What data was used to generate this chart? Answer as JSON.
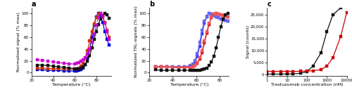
{
  "panel_a": {
    "title": "a",
    "xlabel": "Temperature (°C)",
    "ylabel": "Normalized signal (% max)",
    "xlim": [
      22,
      94
    ],
    "ylim": [
      -5,
      110
    ],
    "xticks": [
      20,
      40,
      60,
      80
    ],
    "curves": [
      {
        "color": "#0000dd",
        "linestyle": "solid",
        "x": [
          25,
          30,
          35,
          40,
          45,
          50,
          55,
          60,
          62,
          64,
          66,
          68,
          70,
          72,
          74,
          76,
          78,
          80,
          82,
          84,
          86,
          88,
          90,
          92
        ],
        "y": [
          5,
          5,
          4,
          4,
          4,
          3,
          3,
          3,
          3,
          4,
          5,
          8,
          14,
          24,
          40,
          60,
          80,
          95,
          100,
          96,
          85,
          70,
          57,
          47
        ]
      },
      {
        "color": "#cc3300",
        "linestyle": "solid",
        "x": [
          25,
          30,
          35,
          40,
          45,
          50,
          55,
          60,
          62,
          64,
          66,
          68,
          70,
          72,
          74,
          76,
          78,
          80,
          82,
          84,
          86,
          88,
          90,
          92
        ],
        "y": [
          8,
          8,
          7,
          7,
          7,
          6,
          6,
          6,
          7,
          8,
          11,
          16,
          25,
          38,
          54,
          70,
          83,
          93,
          99,
          100,
          95,
          85,
          72,
          60
        ]
      },
      {
        "color": "#111111",
        "linestyle": "solid",
        "x": [
          25,
          30,
          35,
          40,
          45,
          50,
          55,
          60,
          62,
          64,
          66,
          68,
          70,
          72,
          74,
          76,
          78,
          80,
          82,
          84,
          86,
          88,
          90,
          92
        ],
        "y": [
          13,
          13,
          12,
          11,
          10,
          9,
          8,
          7,
          7,
          7,
          8,
          10,
          14,
          20,
          29,
          42,
          56,
          70,
          82,
          91,
          97,
          100,
          98,
          92
        ]
      },
      {
        "color": "#cc00cc",
        "linestyle": "dashed",
        "x": [
          25,
          30,
          35,
          40,
          45,
          50,
          55,
          60,
          62,
          64,
          66,
          68,
          70,
          72,
          74,
          76,
          78,
          80,
          82,
          84,
          86,
          88,
          90,
          92
        ],
        "y": [
          22,
          21,
          20,
          18,
          17,
          16,
          15,
          15,
          16,
          17,
          19,
          22,
          26,
          32,
          40,
          52,
          65,
          80,
          93,
          100,
          96,
          84,
          70,
          57
        ]
      }
    ]
  },
  "panel_b": {
    "title": "b",
    "xlabel": "Temperature (°C)",
    "ylabel": "Normalized TRL-signals (% max)",
    "xlim": [
      22,
      88
    ],
    "ylim": [
      -5,
      110
    ],
    "xticks": [
      20,
      40,
      60,
      80
    ],
    "curves": [
      {
        "color": "#3333ff",
        "linestyle": "solid",
        "x": [
          25,
          30,
          35,
          40,
          45,
          50,
          55,
          57,
          59,
          61,
          63,
          65,
          67,
          69,
          71,
          73,
          75,
          77,
          79,
          81,
          83,
          85,
          87
        ],
        "y": [
          10,
          10,
          10,
          10,
          10,
          10,
          11,
          13,
          18,
          28,
          45,
          66,
          84,
          95,
          100,
          99,
          97,
          95,
          93,
          91,
          90,
          89,
          88
        ]
      },
      {
        "color": "#6666ee",
        "linestyle": "solid",
        "x": [
          25,
          30,
          35,
          40,
          45,
          50,
          55,
          57,
          59,
          61,
          63,
          65,
          67,
          69,
          71,
          73,
          75,
          77,
          79,
          81,
          83,
          85,
          87
        ],
        "y": [
          10,
          10,
          10,
          10,
          10,
          10,
          12,
          15,
          21,
          33,
          52,
          72,
          87,
          96,
          100,
          99,
          97,
          95,
          93,
          91,
          90,
          89,
          88
        ]
      },
      {
        "color": "#cc0000",
        "linestyle": "solid",
        "x": [
          25,
          30,
          35,
          40,
          45,
          50,
          55,
          57,
          59,
          61,
          63,
          65,
          67,
          69,
          71,
          73,
          75,
          77,
          79,
          81,
          83,
          85,
          87
        ],
        "y": [
          10,
          10,
          10,
          9,
          9,
          9,
          9,
          10,
          12,
          16,
          23,
          34,
          50,
          67,
          82,
          93,
          99,
          100,
          99,
          98,
          97,
          96,
          95
        ]
      },
      {
        "color": "#ee5555",
        "linestyle": "solid",
        "x": [
          25,
          30,
          35,
          40,
          45,
          50,
          55,
          57,
          59,
          61,
          63,
          65,
          67,
          69,
          71,
          73,
          75,
          77,
          79,
          81,
          83,
          85,
          87
        ],
        "y": [
          10,
          10,
          10,
          9,
          9,
          9,
          9,
          10,
          13,
          17,
          25,
          37,
          54,
          70,
          84,
          94,
          99,
          100,
          99,
          98,
          97,
          96,
          95
        ]
      },
      {
        "color": "#111111",
        "linestyle": "solid",
        "x": [
          25,
          30,
          35,
          40,
          45,
          50,
          55,
          57,
          59,
          61,
          63,
          65,
          67,
          69,
          71,
          73,
          75,
          77,
          79,
          81,
          83,
          85,
          87
        ],
        "y": [
          5,
          4,
          4,
          4,
          4,
          4,
          4,
          4,
          4,
          4,
          4,
          5,
          6,
          8,
          12,
          18,
          28,
          42,
          60,
          78,
          91,
          98,
          100
        ]
      }
    ]
  },
  "panel_c": {
    "title": "c",
    "xlabel": "Trastuzumab concentration (nM)",
    "ylabel": "Signal (counts)",
    "xlim_log": [
      1,
      10000
    ],
    "ylim": [
      -500,
      28000
    ],
    "yticks": [
      0,
      5000,
      10000,
      15000,
      20000,
      25000
    ],
    "xticks_log": [
      1,
      10,
      100,
      1000,
      10000
    ],
    "xtick_labels": [
      "1",
      "10",
      "100",
      "1000",
      "10000"
    ],
    "curves": [
      {
        "color": "#111111",
        "x": [
          1,
          2,
          5,
          10,
          20,
          50,
          100,
          200,
          500,
          1000,
          2000,
          5000,
          10000
        ],
        "y": [
          150,
          150,
          160,
          180,
          250,
          500,
          1200,
          3500,
          9000,
          18000,
          25000,
          28000,
          29000
        ]
      },
      {
        "color": "#cc0000",
        "x": [
          1,
          2,
          5,
          10,
          20,
          50,
          100,
          200,
          500,
          1000,
          2000,
          5000,
          10000
        ],
        "y": [
          1300,
          1300,
          1300,
          1300,
          1300,
          1350,
          1400,
          1600,
          2000,
          3500,
          7000,
          16000,
          26000
        ]
      }
    ]
  },
  "marker": "s",
  "markersize": 2.2,
  "linewidth": 0.9,
  "fontsize_label": 4.5,
  "fontsize_tick": 4.0,
  "fontsize_title": 7.0
}
